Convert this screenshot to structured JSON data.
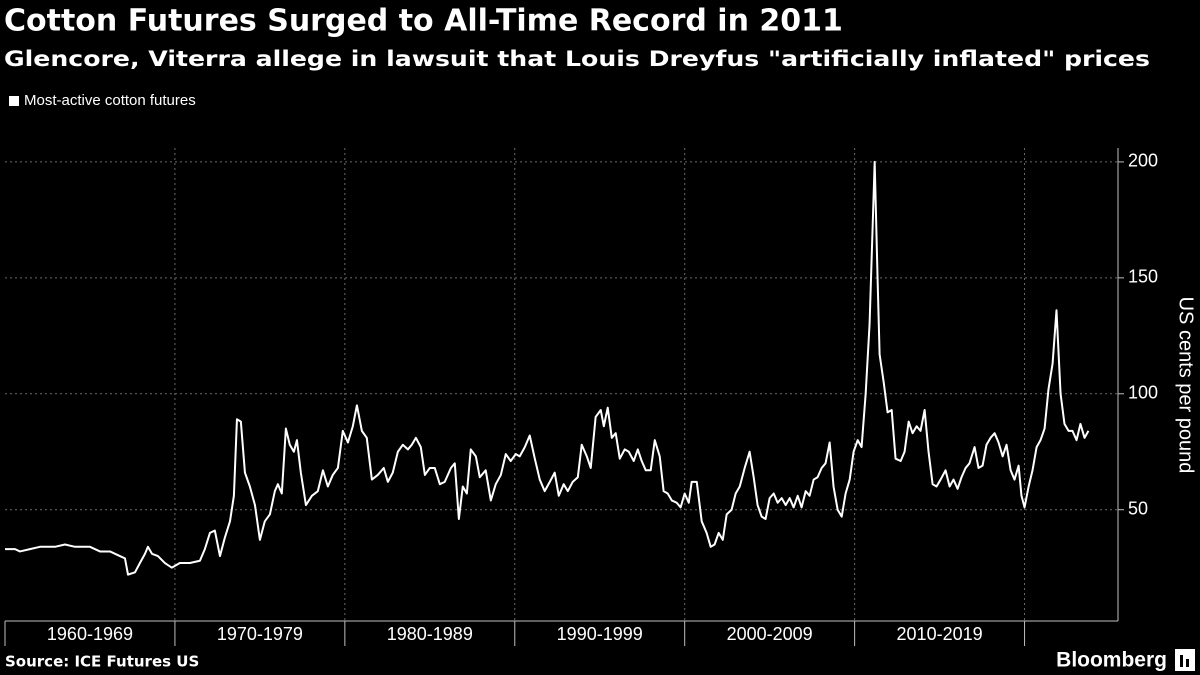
{
  "chart_data": {
    "type": "line",
    "title": "Cotton Futures Surged to All-Time Record in 2011",
    "subtitle": "Glencore, Viterra allege in lawsuit that Louis Dreyfus \"artificially inflated\" prices",
    "y_label": "US cents per pound",
    "source": "Source: ICE Futures US",
    "brand": "Bloomberg",
    "y_axis_side": "right",
    "grid": true,
    "background": "#000000",
    "ylim": [
      2,
      206
    ],
    "yticks": [
      50,
      100,
      150,
      200
    ],
    "xlim": [
      1960,
      2025.5
    ],
    "x_dividers": [
      1960,
      1970,
      1980,
      1990,
      2000,
      2010,
      2020
    ],
    "xticks": [
      {
        "value": 1965,
        "label": "1960-1969"
      },
      {
        "value": 1975,
        "label": "1970-1979"
      },
      {
        "value": 1985,
        "label": "1980-1989"
      },
      {
        "value": 1995,
        "label": "1990-1999"
      },
      {
        "value": 2005,
        "label": "2000-2009"
      },
      {
        "value": 2015,
        "label": "2010-2019"
      }
    ],
    "series": [
      {
        "name": "Most-active cotton futures",
        "color": "#ffffff",
        "x": [
          1960.0,
          1960.59,
          1960.88,
          1961.47,
          1962.06,
          1962.94,
          1963.53,
          1964.12,
          1965.0,
          1965.59,
          1966.18,
          1966.76,
          1967.06,
          1967.24,
          1967.65,
          1967.94,
          1968.24,
          1968.41,
          1968.65,
          1969.0,
          1969.41,
          1969.82,
          1970.29,
          1970.88,
          1971.47,
          1971.76,
          1972.06,
          1972.35,
          1972.65,
          1972.94,
          1973.24,
          1973.47,
          1973.65,
          1973.88,
          1974.12,
          1974.41,
          1974.71,
          1975.0,
          1975.29,
          1975.59,
          1975.88,
          1976.06,
          1976.29,
          1976.53,
          1976.76,
          1977.0,
          1977.18,
          1977.41,
          1977.71,
          1978.06,
          1978.41,
          1978.71,
          1979.0,
          1979.29,
          1979.59,
          1979.88,
          1980.18,
          1980.47,
          1980.71,
          1981.0,
          1981.29,
          1981.59,
          1981.94,
          1982.29,
          1982.53,
          1982.82,
          1983.12,
          1983.41,
          1983.71,
          1983.94,
          1984.18,
          1984.47,
          1984.71,
          1985.0,
          1985.29,
          1985.59,
          1985.88,
          1986.24,
          1986.47,
          1986.71,
          1986.94,
          1987.18,
          1987.41,
          1987.71,
          1987.94,
          1988.29,
          1988.59,
          1988.88,
          1989.18,
          1989.47,
          1989.76,
          1990.06,
          1990.29,
          1990.59,
          1990.88,
          1991.18,
          1991.47,
          1991.76,
          1992.06,
          1992.35,
          1992.59,
          1992.88,
          1993.12,
          1993.41,
          1993.71,
          1993.94,
          1994.24,
          1994.47,
          1994.76,
          1995.06,
          1995.24,
          1995.47,
          1995.71,
          1995.94,
          1996.18,
          1996.47,
          1996.71,
          1997.0,
          1997.24,
          1997.47,
          1997.71,
          1998.0,
          1998.24,
          1998.53,
          1998.76,
          1999.0,
          1999.24,
          1999.53,
          1999.76,
          2000.0,
          2000.24,
          2000.41,
          2000.71,
          2001.0,
          2001.29,
          2001.53,
          2001.76,
          2002.0,
          2002.24,
          2002.47,
          2002.76,
          2003.0,
          2003.24,
          2003.53,
          2003.82,
          2004.06,
          2004.29,
          2004.53,
          2004.76,
          2005.0,
          2005.24,
          2005.47,
          2005.71,
          2005.94,
          2006.18,
          2006.41,
          2006.65,
          2006.88,
          2007.12,
          2007.35,
          2007.59,
          2007.82,
          2008.06,
          2008.29,
          2008.53,
          2008.76,
          2009.0,
          2009.24,
          2009.47,
          2009.71,
          2009.94,
          2010.18,
          2010.41,
          2010.65,
          2010.88,
          2011.18,
          2011.35,
          2011.47,
          2011.71,
          2011.94,
          2012.18,
          2012.41,
          2012.71,
          2012.94,
          2013.18,
          2013.41,
          2013.65,
          2013.88,
          2014.12,
          2014.35,
          2014.59,
          2014.82,
          2015.06,
          2015.35,
          2015.59,
          2015.82,
          2016.06,
          2016.29,
          2016.53,
          2016.76,
          2017.06,
          2017.29,
          2017.53,
          2017.76,
          2018.0,
          2018.24,
          2018.47,
          2018.71,
          2018.94,
          2019.18,
          2019.41,
          2019.65,
          2019.82,
          2020.0,
          2020.24,
          2020.47,
          2020.71,
          2020.94,
          2021.18,
          2021.41,
          2021.65,
          2021.88,
          2022.12,
          2022.35,
          2022.59,
          2022.82,
          2023.06,
          2023.29,
          2023.53,
          2023.76
        ],
        "values": [
          33,
          33,
          32,
          33,
          34,
          34,
          35,
          34,
          34,
          32,
          32,
          30,
          29,
          22,
          23,
          27,
          31,
          34,
          31,
          30,
          27,
          25,
          27,
          27,
          28,
          33,
          40,
          41,
          30,
          38,
          45,
          56,
          89,
          88,
          66,
          60,
          52,
          37,
          45,
          48,
          58,
          61,
          57,
          85,
          78,
          75,
          80,
          66,
          52,
          56,
          58,
          67,
          60,
          65,
          68,
          84,
          79,
          86,
          95,
          84,
          81,
          63,
          65,
          68,
          62,
          66,
          75,
          78,
          76,
          78,
          81,
          77,
          65,
          68,
          68,
          61,
          62,
          68,
          70,
          46,
          60,
          57,
          76,
          73,
          64,
          67,
          54,
          61,
          65,
          74,
          71,
          74,
          73,
          77,
          82,
          72,
          63,
          58,
          62,
          66,
          56,
          61,
          58,
          62,
          64,
          78,
          73,
          68,
          90,
          93,
          86,
          94,
          81,
          83,
          72,
          76,
          75,
          71,
          76,
          71,
          67,
          67,
          80,
          73,
          58,
          57,
          54,
          53,
          51,
          57,
          53,
          62,
          62,
          45,
          40,
          34,
          35,
          40,
          37,
          48,
          50,
          57,
          60,
          68,
          75,
          64,
          52,
          47,
          46,
          55,
          57,
          53,
          55,
          52,
          55,
          51,
          56,
          51,
          58,
          56,
          63,
          64,
          68,
          70,
          79,
          60,
          50,
          47,
          57,
          63,
          75,
          80,
          77,
          100,
          130,
          200,
          150,
          117,
          105,
          92,
          93,
          72,
          71,
          75,
          88,
          83,
          86,
          84,
          93,
          75,
          61,
          60,
          63,
          67,
          60,
          63,
          59,
          64,
          68,
          70,
          77,
          68,
          69,
          78,
          81,
          83,
          79,
          73,
          78,
          67,
          63,
          69,
          56,
          51,
          60,
          67,
          77,
          80,
          85,
          102,
          113,
          136,
          100,
          87,
          84,
          84,
          80,
          87,
          81,
          84
        ]
      }
    ]
  }
}
